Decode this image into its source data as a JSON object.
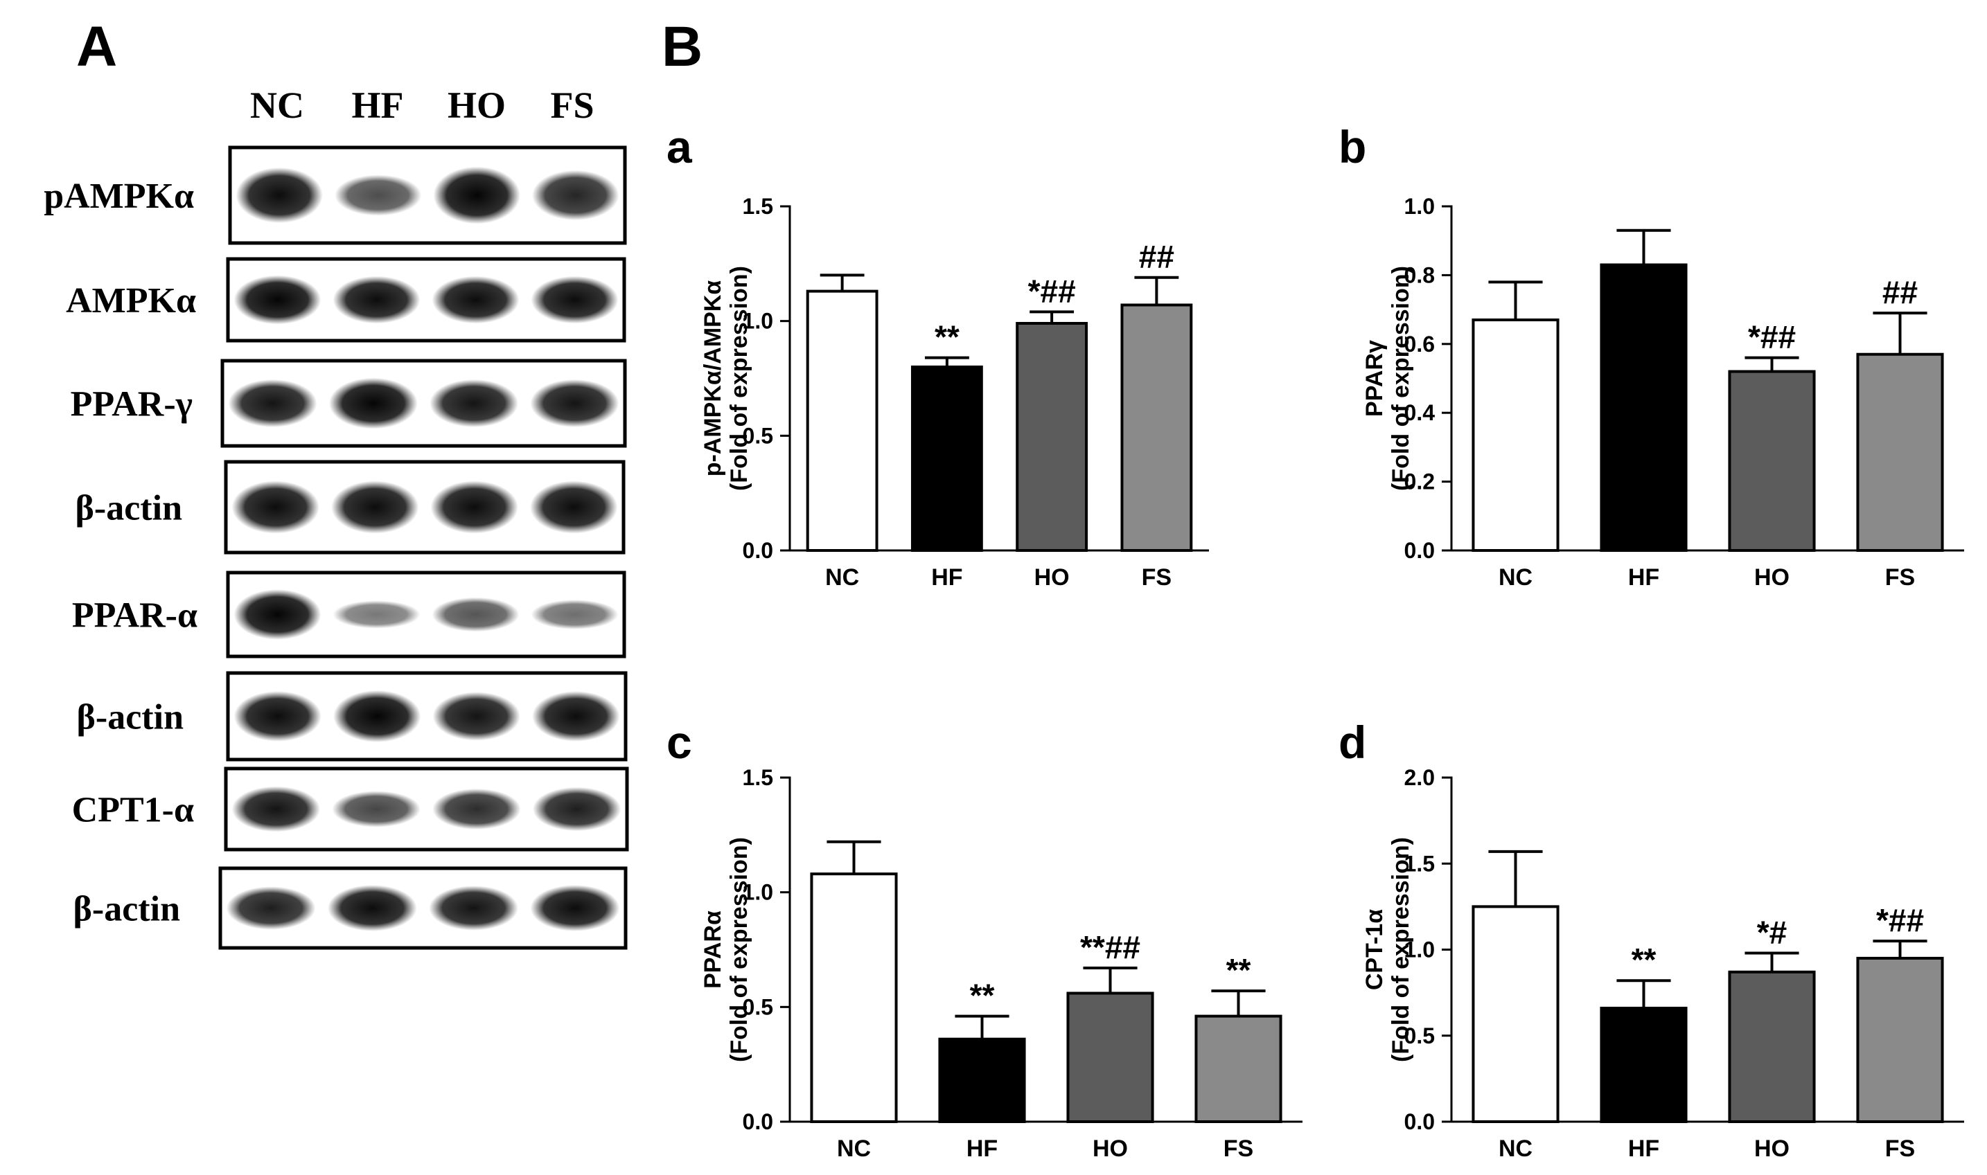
{
  "panels": {
    "A": {
      "letter": "A"
    },
    "B": {
      "letter": "B"
    }
  },
  "blot": {
    "lanes": [
      "NC",
      "HF",
      "HO",
      "FS"
    ],
    "rows": [
      {
        "label": "pAMPKα",
        "intensities": [
          0.95,
          0.55,
          1.0,
          0.8
        ]
      },
      {
        "label": "AMPKα",
        "intensities": [
          1.0,
          0.95,
          0.95,
          0.95
        ]
      },
      {
        "label": "PPAR-γ",
        "intensities": [
          0.9,
          1.0,
          0.9,
          0.9
        ]
      },
      {
        "label": "β-actin",
        "intensities": [
          0.95,
          0.95,
          0.95,
          0.95
        ]
      },
      {
        "label": "PPAR-α",
        "intensities": [
          1.0,
          0.3,
          0.5,
          0.35
        ]
      },
      {
        "label": "β-actin",
        "intensities": [
          0.95,
          1.0,
          0.9,
          0.95
        ]
      },
      {
        "label": "CPT1-α",
        "intensities": [
          0.9,
          0.6,
          0.75,
          0.85
        ]
      },
      {
        "label": "β-actin",
        "intensities": [
          0.85,
          0.95,
          0.9,
          0.95
        ]
      }
    ]
  },
  "chart_data": [
    {
      "panel": "a",
      "type": "bar",
      "categories": [
        "NC",
        "HF",
        "HO",
        "FS"
      ],
      "values": [
        1.13,
        0.8,
        0.99,
        1.07
      ],
      "errors": [
        0.07,
        0.04,
        0.05,
        0.12
      ],
      "annotations": [
        "",
        "**",
        "*##",
        "##"
      ],
      "ylabel": [
        "p-AMPKα/AMPKα",
        "(Fold of expression)"
      ],
      "ylim": [
        0,
        1.5
      ],
      "yticks": [
        0.0,
        0.5,
        1.0,
        1.5
      ],
      "ytick_labels": [
        "0.0",
        "0.5",
        "1.0",
        "1.5"
      ],
      "bar_colors": [
        "#ffffff",
        "#000000",
        "#5c5c5c",
        "#8a8a8a"
      ]
    },
    {
      "panel": "b",
      "type": "bar",
      "categories": [
        "NC",
        "HF",
        "HO",
        "FS"
      ],
      "values": [
        0.67,
        0.83,
        0.52,
        0.57
      ],
      "errors": [
        0.11,
        0.1,
        0.04,
        0.12
      ],
      "annotations": [
        "",
        "",
        "*##",
        "##"
      ],
      "ylabel": [
        "PPARγ",
        "(Fold of expression)"
      ],
      "ylim": [
        0,
        1.0
      ],
      "yticks": [
        0.0,
        0.2,
        0.4,
        0.6,
        0.8,
        1.0
      ],
      "ytick_labels": [
        "0.0",
        "0.2",
        "0.4",
        "0.6",
        "0.8",
        "1.0"
      ],
      "bar_colors": [
        "#ffffff",
        "#000000",
        "#5c5c5c",
        "#8a8a8a"
      ]
    },
    {
      "panel": "c",
      "type": "bar",
      "categories": [
        "NC",
        "HF",
        "HO",
        "FS"
      ],
      "values": [
        1.08,
        0.36,
        0.56,
        0.46
      ],
      "errors": [
        0.14,
        0.1,
        0.11,
        0.11
      ],
      "annotations": [
        "",
        "**",
        "**##",
        "**"
      ],
      "ylabel": [
        "PPARα",
        "(Fold of expression)"
      ],
      "ylim": [
        0,
        1.5
      ],
      "yticks": [
        0.0,
        0.5,
        1.0,
        1.5
      ],
      "ytick_labels": [
        "0.0",
        "0.5",
        "1.0",
        "1.5"
      ],
      "bar_colors": [
        "#ffffff",
        "#000000",
        "#5c5c5c",
        "#8a8a8a"
      ]
    },
    {
      "panel": "d",
      "type": "bar",
      "categories": [
        "NC",
        "HF",
        "HO",
        "FS"
      ],
      "values": [
        1.25,
        0.66,
        0.87,
        0.95
      ],
      "errors": [
        0.32,
        0.16,
        0.11,
        0.1
      ],
      "annotations": [
        "",
        "**",
        "*#",
        "*##"
      ],
      "ylabel": [
        "CPT-1α",
        "(Fold of expression)"
      ],
      "ylim": [
        0,
        2.0
      ],
      "yticks": [
        0.0,
        0.5,
        1.0,
        1.5,
        2.0
      ],
      "ytick_labels": [
        "0.0",
        "0.5",
        "1.0",
        "1.5",
        "2.0"
      ],
      "bar_colors": [
        "#ffffff",
        "#000000",
        "#5c5c5c",
        "#8a8a8a"
      ]
    }
  ]
}
